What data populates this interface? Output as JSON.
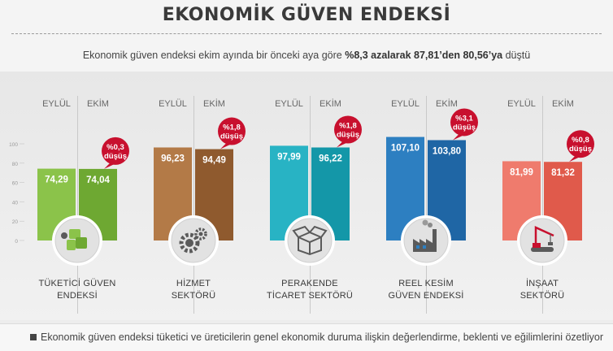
{
  "header": {
    "title": "EKONOMİK GÜVEN ENDEKSİ",
    "subtitle_prefix": "Ekonomik güven endeksi ekim ayında bir önceki aya göre ",
    "subtitle_bold": "%8,3 azalarak 87,81’den 80,56’ya",
    "subtitle_suffix": " düştü"
  },
  "footer": {
    "text": "Ekonomik güven endeksi tüketici ve üreticilerin genel ekonomik duruma ilişkin değerlendirme, beklenti ve eğilimlerini özetliyor"
  },
  "chart_data": {
    "type": "bar",
    "categories": [
      "TÜKETİCİ GÜVEN ENDEKSİ",
      "HİZMET SEKTÖRÜ",
      "PERAKENDE TİCARET SEKTÖRÜ",
      "REEL KESİM GÜVEN ENDEKSİ",
      "İNŞAAT SEKTÖRÜ"
    ],
    "ylim": [
      0,
      100
    ],
    "yticks": [
      "0",
      "20",
      "40",
      "60",
      "80",
      "100"
    ],
    "months": [
      "EYLÜL",
      "EKİM"
    ],
    "series": [
      {
        "name": "EYLÜL",
        "values": [
          74.29,
          96.23,
          97.99,
          107.1,
          81.99
        ],
        "labels": [
          "74,29",
          "96,23",
          "97,99",
          "107,10",
          "81,99"
        ]
      },
      {
        "name": "EKİM",
        "values": [
          74.04,
          94.49,
          96.22,
          103.8,
          81.32
        ],
        "labels": [
          "74,04",
          "94,49",
          "96,22",
          "103,80",
          "81,32"
        ]
      }
    ],
    "annotations": [
      {
        "value": "%0,3",
        "text": "düşüş"
      },
      {
        "value": "%1,8",
        "text": "düşüş"
      },
      {
        "value": "%1,8",
        "text": "düşüş"
      },
      {
        "value": "%3,1",
        "text": "düşüş"
      },
      {
        "value": "%0,8",
        "text": "düşüş"
      }
    ],
    "labels": [
      "TÜKETİCİ GÜVEN\nENDEKSİ",
      "HİZMET\nSEKTÖRÜ",
      "PERAKENDE\nTİCARET SEKTÖRÜ",
      "REEL KESİM\nGÜVEN ENDEKSİ",
      "İNŞAAT\nSEKTÖRÜ"
    ],
    "colors": {
      "consumer_light": "#8bc34a",
      "consumer_dark": "#6ea832",
      "service_light": "#b37a47",
      "service_dark": "#8f5a2e",
      "retail_light": "#28b3c4",
      "retail_dark": "#1497a8",
      "real_light": "#2d7fc1",
      "real_dark": "#1f66a5",
      "construction_light": "#ef7b6d",
      "construction_dark": "#e05a4b",
      "badge": "#c8102e"
    },
    "icons": [
      "consumer-shopping-bags-icon",
      "gears-icon",
      "box-icon",
      "factory-icon",
      "crane-icon"
    ]
  }
}
